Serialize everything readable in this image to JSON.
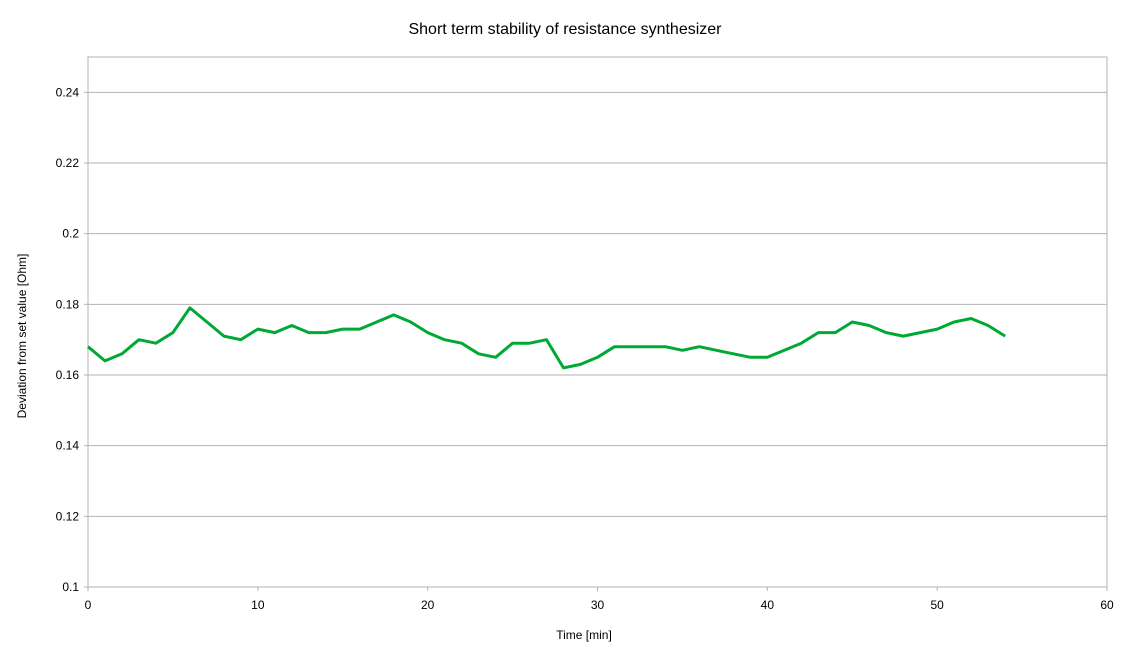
{
  "chart_data": {
    "type": "line",
    "title": "Short term stability of resistance synthesizer",
    "xlabel": "Time [min]",
    "ylabel": "Deviation from set value [Ohm]",
    "xlim": [
      0,
      60
    ],
    "ylim": [
      0.1,
      0.25
    ],
    "x_ticks": [
      0,
      10,
      20,
      30,
      40,
      50,
      60
    ],
    "y_ticks": [
      0.1,
      0.12,
      0.14,
      0.16,
      0.18,
      0.2,
      0.22,
      0.24
    ],
    "grid": "horizontal",
    "legend": "none",
    "series": [
      {
        "color": "#00a933",
        "x": [
          0,
          1,
          2,
          3,
          4,
          5,
          6,
          7,
          8,
          9,
          10,
          11,
          12,
          13,
          14,
          15,
          16,
          17,
          18,
          19,
          20,
          21,
          22,
          23,
          24,
          25,
          26,
          27,
          28,
          29,
          30,
          31,
          32,
          33,
          34,
          35,
          36,
          37,
          38,
          39,
          40,
          41,
          42,
          43,
          44,
          45,
          46,
          47,
          48,
          49,
          50,
          51,
          52,
          53,
          54
        ],
        "values": [
          0.168,
          0.164,
          0.166,
          0.17,
          0.169,
          0.172,
          0.179,
          0.175,
          0.171,
          0.17,
          0.173,
          0.172,
          0.174,
          0.172,
          0.172,
          0.173,
          0.173,
          0.175,
          0.177,
          0.175,
          0.172,
          0.17,
          0.169,
          0.166,
          0.165,
          0.169,
          0.169,
          0.17,
          0.162,
          0.163,
          0.165,
          0.168,
          0.168,
          0.168,
          0.168,
          0.167,
          0.168,
          0.167,
          0.166,
          0.165,
          0.165,
          0.167,
          0.169,
          0.172,
          0.172,
          0.175,
          0.174,
          0.172,
          0.171,
          0.172,
          0.173,
          0.175,
          0.176,
          0.174,
          0.171
        ]
      }
    ]
  }
}
